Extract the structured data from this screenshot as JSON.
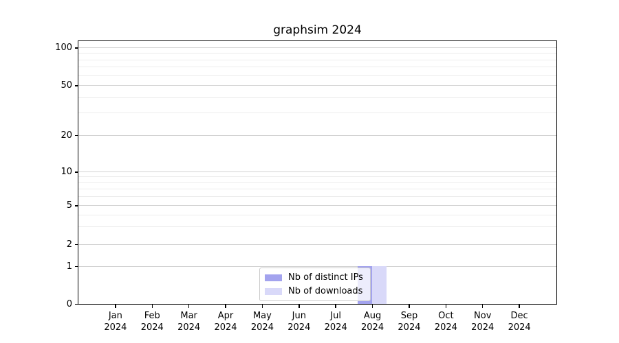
{
  "figure": {
    "title": "graphsim 2024"
  },
  "legend": {
    "items": [
      {
        "label": "Nb of distinct IPs",
        "color": "#a3a3ee"
      },
      {
        "label": "Nb of downloads",
        "color": "#d9d9f9"
      }
    ]
  },
  "chart_data": {
    "type": "bar",
    "title": "graphsim 2024",
    "categories": [
      "Jan 2024",
      "Feb 2024",
      "Mar 2024",
      "Apr 2024",
      "May 2024",
      "Jun 2024",
      "Jul 2024",
      "Aug 2024",
      "Sep 2024",
      "Oct 2024",
      "Nov 2024",
      "Dec 2024"
    ],
    "series": [
      {
        "name": "Nb of distinct IPs",
        "color": "#a3a3ee",
        "values": [
          0,
          0,
          0,
          0,
          0,
          0,
          0,
          1,
          0,
          0,
          0,
          0
        ]
      },
      {
        "name": "Nb of downloads",
        "color": "#d9d9f9",
        "values": [
          0,
          0,
          0,
          0,
          0,
          0,
          0,
          1,
          0,
          0,
          0,
          0
        ]
      }
    ],
    "xlabel": "",
    "ylabel": "",
    "yscale": "log-like (0 baseline with log spacing above)",
    "yticks_major": [
      0,
      1,
      2,
      5,
      10,
      20,
      50,
      100
    ],
    "yticks_minor": [
      3,
      4,
      6,
      7,
      8,
      9,
      30,
      40,
      60,
      70,
      80,
      90
    ],
    "ylim": [
      0,
      110
    ],
    "grid": "horizontal, major and minor",
    "legend_position": "lower center",
    "colors": {
      "grid_major": "#d2d2d2",
      "grid_minor": "#ececec",
      "spine": "#000000",
      "text": "#000000"
    }
  }
}
